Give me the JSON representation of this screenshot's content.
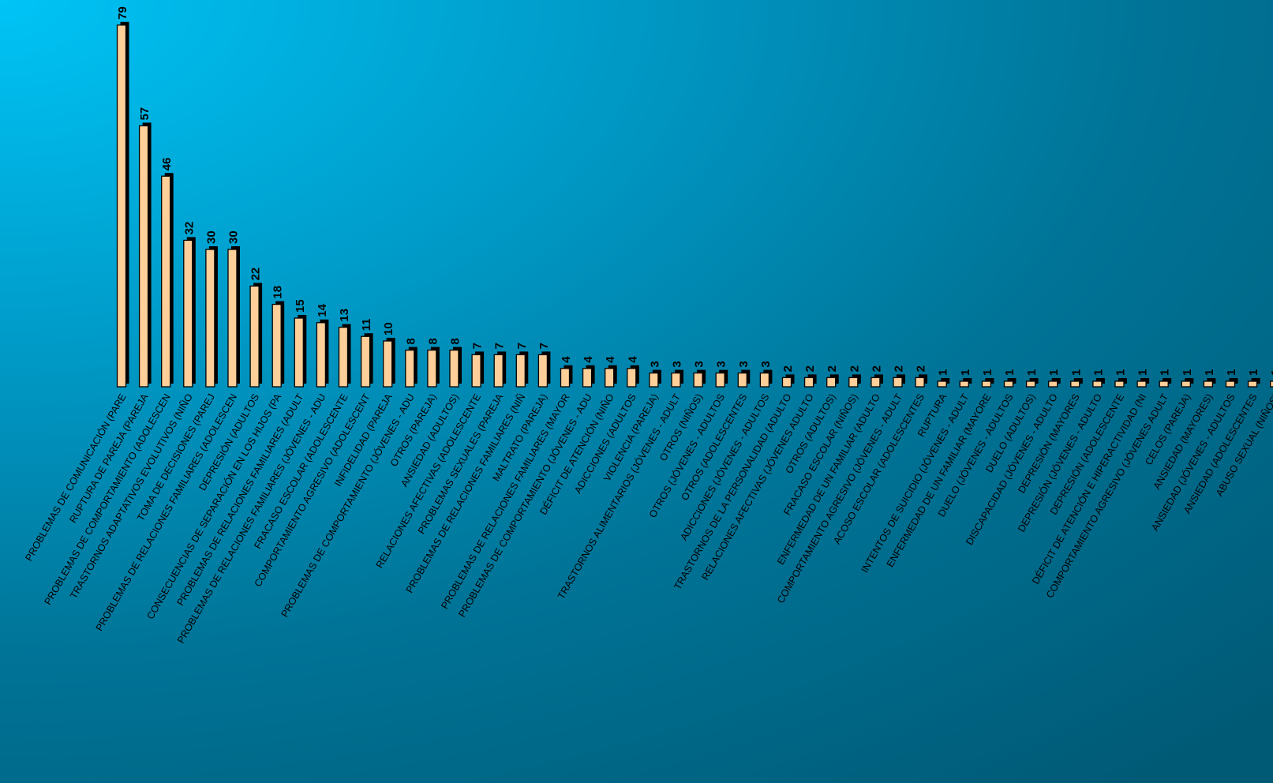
{
  "colors": {
    "bar": "#ffcf99",
    "bar_outline": "#000000",
    "text": "#000000",
    "background_light": "#00c4f6",
    "background_dark": "#005a76"
  },
  "chart_data": {
    "type": "bar",
    "title": "",
    "xlabel": "",
    "ylabel": "",
    "grid": false,
    "legend": "none",
    "ylim": [
      0,
      80
    ],
    "categories": [
      "PROBLEMAS DE COMUNICACIÓN (PARE",
      "RUPTURA DE PAREJA (PAREJA",
      "PROBLEMAS DE COMPORTAMIENTO (ADOLESCEN",
      "TRASTORNOS ADAPTATIVOS EVOLUTIVOS (NIÑO",
      "TOMA DE DECISIONES (PAREJ",
      "PROBLEMAS DE RELACIONES FAMILIARES (ADOLESCEN",
      "DEPRESIÓN (ADULTOS",
      "CONSECUENCIAS DE SEPARACIÓN EN LOS HIJOS (PA",
      "PROBLEMAS DE RELACIONES FAMILIARES (ADULT",
      "PROBLEMAS DE RELACIONES FAMILIARES (JÓVENES - ADU",
      "FRACASO ESCOLAR (ADOLESCENTE",
      "COMPORTAMIENTO AGRESIVO (ADOLESCENT",
      "INFIDELIDAD (PAREJA",
      "PROBLEMAS DE COMPORTAMIENTO (JÓVENES - ADU",
      "OTROS (PAREJA)",
      "ANSIEDAD (ADULTOS)",
      "RELACIONES AFECTIVAS (ADOLESCENTE",
      "PROBLEMAS SEXUALES (PAREJA",
      "PROBLEMAS DE RELACIONES FAMILIARES (NIÑ",
      "MALTRATO (PAREJA)",
      "PROBLEMAS DE RELACIONES FAMILIARES (MAYOR",
      "PROBLEMAS DE COMPORTAMIENTO (JÓVENES - ADU",
      "DÉFICIT DE ATENCIÓN (NIÑO",
      "ADICCIONES (ADULTOS",
      "VIOLENCIA (PAREJA)",
      "TRASTORNOS ALIMENTARIOS (JÓVENES - ADULT",
      "OTROS (NIÑOS)",
      "OTROS (JÓVENES - ADULTOS",
      "OTROS (ADOLESCENTES",
      "ADICCIONES (JÓVENES - ADULTOS",
      "TRASTORNOS DE LA PERSONALIDAD (ADULTO",
      "RELACIONES AFECTIVAS (JÓVENES ADULTO",
      "OTROS (ADULTOS)",
      "FRACASO ESCOLAR (NIÑOS)",
      "ENFERMEDAD DE UN FAMILIAR (ADULTO",
      "COMPORTAMIENTO AGRESIVO (JÓVENES - ADULT",
      "ACOSO ESCOLAR (ADOLESCENTES",
      "RUPTURA",
      "INTENTOS DE SUICIDIO (JÓVENES - ADULT",
      "ENFERMEDAD DE UN FAMILIAR (MAYORE",
      "DUELO (JÓVENES - ADULTOS",
      "DUELO (ADULTOS)",
      "DISCAPACIDAD (JÓVENES - ADULTO",
      "DEPRESIÓN (MAYORES",
      "DEPRESIÓN (JÓVENES - ADULTO",
      "DEPRESIÓN (ADOLESCENTE",
      "DÉFICIT DE ATENCIÓN E HIPERACTIVIDAD (NI",
      "COMPORTAMIENTO AGRESIVO (JÓVENES ADULT",
      "CELOS (PAREJA)",
      "ANSIEDAD (MAYORES)",
      "ANSIEDAD (JÓVENES - ADULTOS",
      "ANSIEDAD (ADOLESCENTES",
      "ABUSO SEXUAL (NIÑOS)"
    ],
    "values": [
      79,
      57,
      46,
      32,
      30,
      30,
      22,
      18,
      15,
      14,
      13,
      11,
      10,
      8,
      8,
      8,
      7,
      7,
      7,
      7,
      4,
      4,
      4,
      4,
      3,
      3,
      3,
      3,
      3,
      3,
      2,
      2,
      2,
      2,
      2,
      2,
      2,
      1,
      1,
      1,
      1,
      1,
      1,
      1,
      1,
      1,
      1,
      1,
      1,
      1,
      1,
      1,
      1
    ]
  }
}
